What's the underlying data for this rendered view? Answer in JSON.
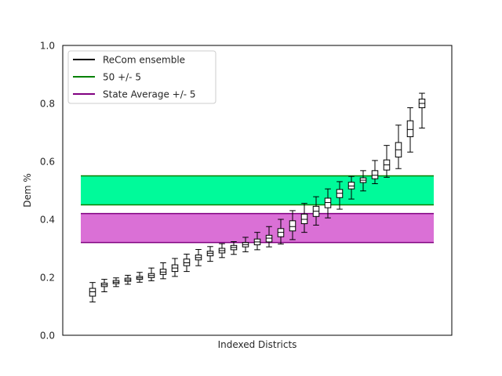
{
  "chart_data": {
    "type": "boxplot",
    "title": "",
    "xlabel": "Indexed Districts",
    "ylabel": "Dem %",
    "ylim": [
      0.0,
      1.0
    ],
    "yticks": [
      "0.0",
      "0.2",
      "0.4",
      "0.6",
      "0.8",
      "1.0"
    ],
    "grid": false,
    "legend": {
      "placement": "top-left",
      "entries": [
        {
          "label": "ReCom ensemble",
          "color": "#000000"
        },
        {
          "label": "50 +/- 5",
          "color": "#008000"
        },
        {
          "label": "State Average +/- 5",
          "color": "#800080"
        }
      ]
    },
    "bands": [
      {
        "name": "50 +/- 5",
        "y0": 0.45,
        "y1": 0.55,
        "fill": "#00fa9a",
        "edge": "#008000"
      },
      {
        "name": "State Average +/- 5",
        "y0": 0.32,
        "y1": 0.42,
        "fill": "#da70d6",
        "edge": "#800080"
      }
    ],
    "series": [
      {
        "name": "ReCom ensemble",
        "boxes": [
          {
            "district": 1,
            "whislo": 0.115,
            "q1": 0.135,
            "med": 0.15,
            "q3": 0.162,
            "whishi": 0.182
          },
          {
            "district": 2,
            "whislo": 0.15,
            "q1": 0.168,
            "med": 0.174,
            "q3": 0.18,
            "whishi": 0.193
          },
          {
            "district": 3,
            "whislo": 0.168,
            "q1": 0.178,
            "med": 0.183,
            "q3": 0.189,
            "whishi": 0.198
          },
          {
            "district": 4,
            "whislo": 0.176,
            "q1": 0.186,
            "med": 0.191,
            "q3": 0.197,
            "whishi": 0.207
          },
          {
            "district": 5,
            "whislo": 0.183,
            "q1": 0.193,
            "med": 0.198,
            "q3": 0.203,
            "whishi": 0.217
          },
          {
            "district": 6,
            "whislo": 0.188,
            "q1": 0.199,
            "med": 0.206,
            "q3": 0.213,
            "whishi": 0.232
          },
          {
            "district": 7,
            "whislo": 0.195,
            "q1": 0.21,
            "med": 0.218,
            "q3": 0.228,
            "whishi": 0.25
          },
          {
            "district": 8,
            "whislo": 0.203,
            "q1": 0.22,
            "med": 0.232,
            "q3": 0.243,
            "whishi": 0.265
          },
          {
            "district": 9,
            "whislo": 0.22,
            "q1": 0.24,
            "med": 0.25,
            "q3": 0.263,
            "whishi": 0.28
          },
          {
            "district": 10,
            "whislo": 0.24,
            "q1": 0.26,
            "med": 0.268,
            "q3": 0.277,
            "whishi": 0.296
          },
          {
            "district": 11,
            "whislo": 0.255,
            "q1": 0.274,
            "med": 0.283,
            "q3": 0.29,
            "whishi": 0.306
          },
          {
            "district": 12,
            "whislo": 0.268,
            "q1": 0.284,
            "med": 0.292,
            "q3": 0.3,
            "whishi": 0.316
          },
          {
            "district": 13,
            "whislo": 0.279,
            "q1": 0.295,
            "med": 0.303,
            "q3": 0.31,
            "whishi": 0.323
          },
          {
            "district": 14,
            "whislo": 0.288,
            "q1": 0.305,
            "med": 0.313,
            "q3": 0.32,
            "whishi": 0.338
          },
          {
            "district": 15,
            "whislo": 0.295,
            "q1": 0.312,
            "med": 0.322,
            "q3": 0.332,
            "whishi": 0.355
          },
          {
            "district": 16,
            "whislo": 0.305,
            "q1": 0.322,
            "med": 0.335,
            "q3": 0.345,
            "whishi": 0.375
          },
          {
            "district": 17,
            "whislo": 0.315,
            "q1": 0.34,
            "med": 0.355,
            "q3": 0.368,
            "whishi": 0.4
          },
          {
            "district": 18,
            "whislo": 0.33,
            "q1": 0.36,
            "med": 0.375,
            "q3": 0.395,
            "whishi": 0.43
          },
          {
            "district": 19,
            "whislo": 0.355,
            "q1": 0.385,
            "med": 0.4,
            "q3": 0.418,
            "whishi": 0.455
          },
          {
            "district": 20,
            "whislo": 0.38,
            "q1": 0.41,
            "med": 0.428,
            "q3": 0.445,
            "whishi": 0.478
          },
          {
            "district": 21,
            "whislo": 0.405,
            "q1": 0.44,
            "med": 0.458,
            "q3": 0.473,
            "whishi": 0.505
          },
          {
            "district": 22,
            "whislo": 0.435,
            "q1": 0.475,
            "med": 0.49,
            "q3": 0.503,
            "whishi": 0.53
          },
          {
            "district": 23,
            "whislo": 0.47,
            "q1": 0.505,
            "med": 0.515,
            "q3": 0.528,
            "whishi": 0.548
          },
          {
            "district": 24,
            "whislo": 0.498,
            "q1": 0.527,
            "med": 0.535,
            "q3": 0.543,
            "whishi": 0.568
          },
          {
            "district": 25,
            "whislo": 0.523,
            "q1": 0.54,
            "med": 0.552,
            "q3": 0.568,
            "whishi": 0.603
          },
          {
            "district": 26,
            "whislo": 0.545,
            "q1": 0.57,
            "med": 0.588,
            "q3": 0.605,
            "whishi": 0.655
          },
          {
            "district": 27,
            "whislo": 0.575,
            "q1": 0.615,
            "med": 0.64,
            "q3": 0.665,
            "whishi": 0.725
          },
          {
            "district": 28,
            "whislo": 0.632,
            "q1": 0.685,
            "med": 0.71,
            "q3": 0.74,
            "whishi": 0.785
          },
          {
            "district": 29,
            "whislo": 0.715,
            "q1": 0.785,
            "med": 0.8,
            "q3": 0.815,
            "whishi": 0.835
          }
        ]
      }
    ]
  }
}
